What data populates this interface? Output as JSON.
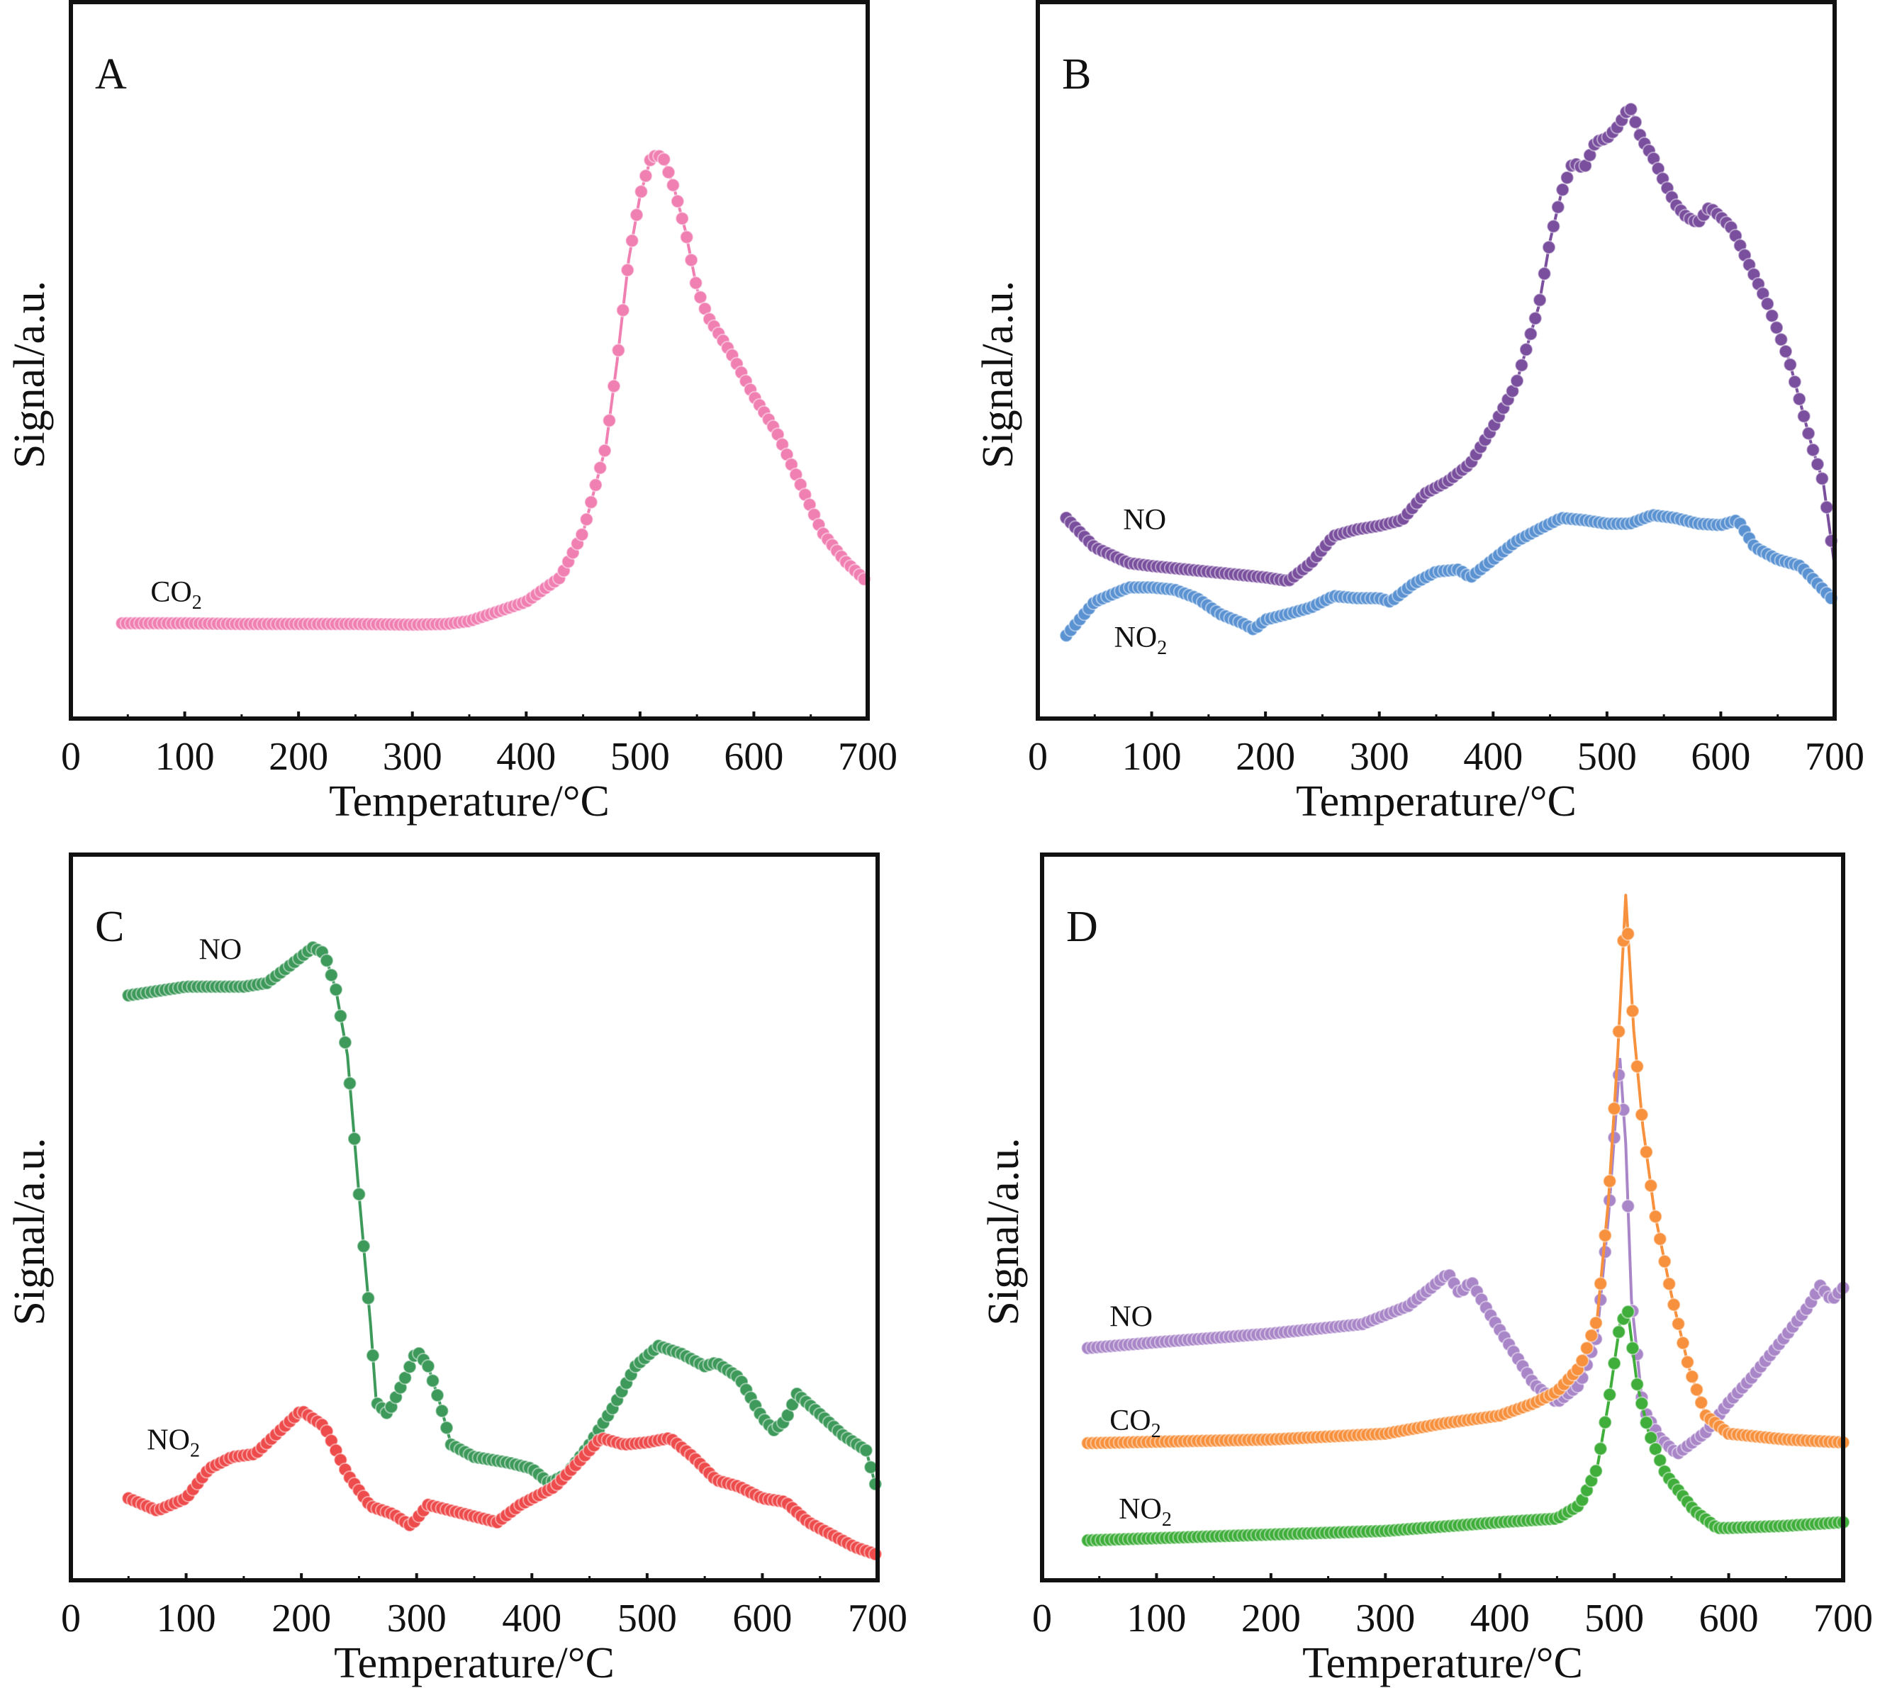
{
  "chart_data": [
    {
      "panel": "A",
      "type": "line",
      "xlabel": "Temperature/°C",
      "ylabel": "Signal/a.u.",
      "xlim": [
        0,
        700
      ],
      "xticks": [
        0,
        100,
        200,
        300,
        400,
        500,
        600,
        700
      ],
      "ylim": [
        0,
        100
      ],
      "y_ticks_shown": false,
      "grid": false,
      "series": [
        {
          "name": "CO",
          "sub": "2",
          "color": "#f07fb2",
          "x": [
            45,
            100,
            150,
            200,
            250,
            300,
            330,
            350,
            380,
            400,
            430,
            450,
            470,
            480,
            490,
            500,
            510,
            520,
            530,
            540,
            550,
            560,
            580,
            600,
            620,
            640,
            660,
            680,
            700
          ],
          "y": [
            13.3,
            13.3,
            13.2,
            13.2,
            13.2,
            13.1,
            13.2,
            13.6,
            15.2,
            16.3,
            19.7,
            26,
            38,
            50,
            64,
            73,
            78.5,
            78.5,
            74,
            68,
            60,
            56,
            51,
            45,
            40,
            33,
            26,
            22,
            19
          ]
        }
      ]
    },
    {
      "panel": "B",
      "type": "line",
      "xlabel": "Temperature/°C",
      "ylabel": "Signal/a.u.",
      "xlim": [
        0,
        700
      ],
      "xticks": [
        0,
        100,
        200,
        300,
        400,
        500,
        600,
        700
      ],
      "ylim": [
        0,
        100
      ],
      "y_ticks_shown": false,
      "grid": false,
      "series": [
        {
          "name": "NO",
          "sub": "",
          "color": "#7a4f9e",
          "x": [
            25,
            50,
            80,
            100,
            150,
            200,
            220,
            240,
            260,
            280,
            300,
            320,
            340,
            360,
            380,
            400,
            420,
            440,
            450,
            460,
            470,
            480,
            490,
            500,
            510,
            520,
            530,
            540,
            550,
            560,
            570,
            580,
            590,
            600,
            610,
            620,
            640,
            660,
            680,
            690,
            700
          ],
          "y": [
            28,
            23.9,
            21.7,
            21.3,
            20.5,
            19.7,
            19.2,
            21.7,
            25.5,
            26.4,
            26.9,
            27.7,
            31.4,
            33.1,
            35.6,
            40.7,
            46.6,
            57.5,
            66.7,
            73.4,
            77.6,
            76.8,
            80.5,
            81,
            82.7,
            85.5,
            81,
            78.5,
            75,
            71.8,
            70,
            69.2,
            71.4,
            70,
            68.4,
            65,
            58.3,
            50,
            38,
            33,
            21.3
          ]
        },
        {
          "name": "NO",
          "sub": "2",
          "color": "#5a92d2",
          "x": [
            25,
            50,
            80,
            100,
            120,
            140,
            160,
            180,
            190,
            200,
            220,
            240,
            260,
            280,
            300,
            310,
            330,
            350,
            370,
            380,
            400,
            420,
            440,
            460,
            480,
            500,
            520,
            540,
            560,
            580,
            600,
            615,
            630,
            650,
            670,
            690,
            700
          ],
          "y": [
            11.6,
            16.3,
            18.3,
            18.3,
            18,
            16.8,
            14.6,
            13.3,
            12.4,
            13.8,
            14.6,
            15.5,
            17.1,
            16.8,
            16.8,
            16.3,
            18.8,
            20.5,
            20.8,
            19.7,
            22.2,
            24.7,
            26.4,
            28,
            27.7,
            27.2,
            27.2,
            28.4,
            28,
            27.2,
            27,
            27.7,
            23.9,
            22.2,
            21.3,
            18,
            16.3
          ]
        }
      ]
    },
    {
      "panel": "C",
      "type": "line",
      "xlabel": "Temperature/°C",
      "ylabel": "Signal/a.u.",
      "xlim": [
        0,
        700
      ],
      "xticks": [
        0,
        100,
        200,
        300,
        400,
        500,
        600,
        700
      ],
      "ylim": [
        0,
        100
      ],
      "y_ticks_shown": false,
      "grid": false,
      "series": [
        {
          "name": "NO",
          "sub": "",
          "color": "#3e9a5b",
          "x": [
            50,
            100,
            150,
            170,
            190,
            210,
            220,
            230,
            240,
            250,
            260,
            265,
            275,
            290,
            300,
            310,
            320,
            330,
            350,
            380,
            400,
            415,
            430,
            450,
            470,
            490,
            510,
            530,
            550,
            560,
            580,
            600,
            610,
            620,
            630,
            650,
            670,
            690,
            700
          ],
          "y": [
            80.6,
            81.8,
            81.8,
            82.3,
            84.7,
            87.2,
            86.4,
            81.4,
            72.3,
            53.2,
            35.3,
            24.5,
            22.9,
            27.9,
            31.7,
            29.5,
            24.5,
            18.7,
            17,
            16.2,
            15.4,
            13.4,
            14.6,
            18.7,
            23.7,
            29.5,
            32.3,
            31.2,
            29.5,
            30,
            27.9,
            22.4,
            20.7,
            22,
            25.7,
            22.9,
            20,
            17.9,
            12.1
          ]
        },
        {
          "name": "NO",
          "sub": "2",
          "color": "#ee4c4c",
          "x": [
            50,
            75,
            100,
            120,
            140,
            160,
            180,
            200,
            220,
            240,
            260,
            280,
            295,
            310,
            330,
            350,
            370,
            390,
            420,
            440,
            460,
            480,
            500,
            520,
            540,
            560,
            580,
            600,
            620,
            640,
            660,
            680,
            700
          ],
          "y": [
            11.3,
            9.6,
            11.3,
            15.4,
            17,
            17.4,
            20.4,
            23.4,
            21.2,
            14.6,
            10.2,
            9.1,
            7.5,
            10.4,
            9.6,
            8.8,
            8,
            10.4,
            12.9,
            16.2,
            19.6,
            18.7,
            19,
            19.6,
            17,
            13.8,
            12.9,
            11.3,
            10.8,
            8,
            6.3,
            4.6,
            3.5
          ]
        }
      ]
    },
    {
      "panel": "D",
      "type": "line",
      "xlabel": "Temperature/°C",
      "ylabel": "Signal/a.u.",
      "xlim": [
        0,
        700
      ],
      "xticks": [
        0,
        100,
        200,
        300,
        400,
        500,
        600,
        700
      ],
      "ylim": [
        0,
        100
      ],
      "y_ticks_shown": false,
      "grid": false,
      "series": [
        {
          "name": "NO",
          "sub": "",
          "color": "#a986c8",
          "x": [
            40,
            100,
            200,
            280,
            320,
            340,
            355,
            365,
            375,
            390,
            410,
            430,
            450,
            470,
            485,
            495,
            505,
            510,
            515,
            525,
            540,
            555,
            580,
            600,
            620,
            650,
            670,
            680,
            690,
            700
          ],
          "y": [
            32,
            32.8,
            34,
            35.3,
            37.8,
            40.3,
            42.3,
            39.5,
            41.2,
            37,
            32,
            27,
            24.5,
            27,
            33.7,
            50.2,
            71.8,
            60.2,
            38.6,
            23.7,
            19.6,
            17.4,
            20.4,
            24.5,
            27.9,
            33.7,
            37.8,
            40.6,
            38.6,
            40.3
          ]
        },
        {
          "name": "CO",
          "sub": "2",
          "color": "#f7913e",
          "x": [
            40,
            200,
            300,
            350,
            400,
            430,
            450,
            470,
            485,
            495,
            503,
            510,
            517,
            525,
            535,
            550,
            565,
            580,
            600,
            650,
            700
          ],
          "y": [
            18.9,
            19.4,
            20.2,
            21.6,
            22.7,
            24.4,
            26,
            29.4,
            35.9,
            52.5,
            72.5,
            94.4,
            75.8,
            62.5,
            50.9,
            39.3,
            29.4,
            22.7,
            20.2,
            19.4,
            19
          ]
        },
        {
          "name": "NO",
          "sub": "2",
          "color": "#3fae3b",
          "x": [
            40,
            200,
            300,
            400,
            450,
            470,
            485,
            495,
            505,
            512,
            520,
            530,
            545,
            570,
            590,
            600,
            650,
            700
          ],
          "y": [
            5.5,
            6.3,
            6.8,
            8,
            8.5,
            10.4,
            15.4,
            24.5,
            35.3,
            37,
            27,
            20.4,
            14.6,
            9.6,
            7.2,
            7.2,
            7.5,
            8
          ]
        }
      ]
    }
  ]
}
